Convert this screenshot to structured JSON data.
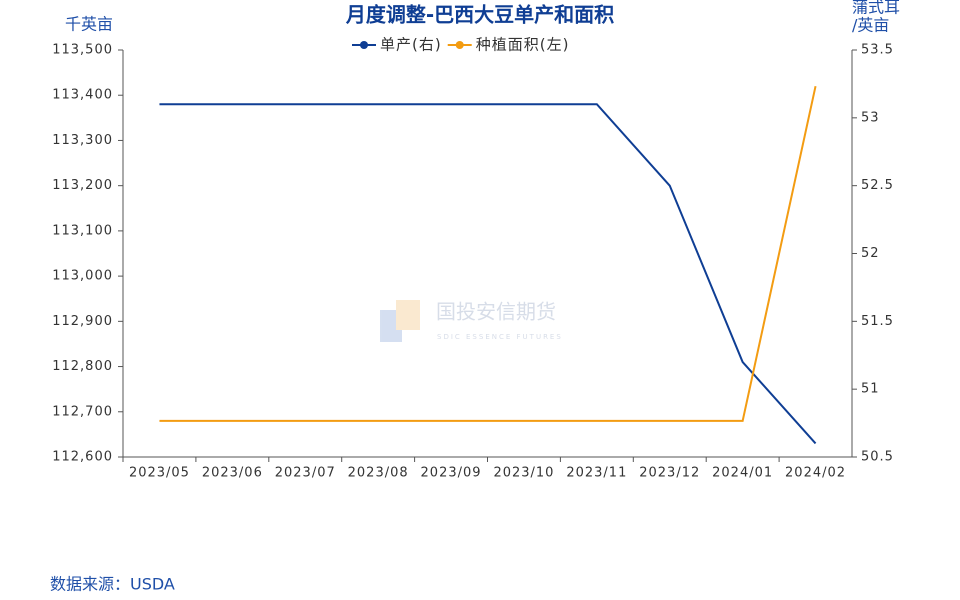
{
  "chart_data": {
    "type": "line",
    "title": "月度调整-巴西大豆单产和面积",
    "y_label": "千英亩",
    "y2_label": [
      "蒲式耳",
      "/英亩"
    ],
    "categories": [
      "2023/05",
      "2023/06",
      "2023/07",
      "2023/08",
      "2023/09",
      "2023/10",
      "2023/11",
      "2023/12",
      "2024/01",
      "2024/02"
    ],
    "series": [
      {
        "name": "单产(右)",
        "color": "#0f3e94",
        "axis": "y2",
        "values": [
          53.1,
          53.1,
          53.1,
          53.1,
          53.1,
          53.1,
          53.1,
          52.5,
          51.2,
          50.6
        ]
      },
      {
        "name": "种植面积(左)",
        "color": "#f39c12",
        "values": [
          112680,
          112680,
          112680,
          112680,
          112680,
          112680,
          112680,
          112680,
          112680,
          113420
        ]
      }
    ],
    "ylim": [
      112600,
      113500
    ],
    "yticks": [
      {
        "value": 112600,
        "label": "112,600"
      },
      {
        "value": 112700,
        "label": "112,700"
      },
      {
        "value": 112800,
        "label": "112,800"
      },
      {
        "value": 112900,
        "label": "112,900"
      },
      {
        "value": 113000,
        "label": "113,000"
      },
      {
        "value": 113100,
        "label": "113,100"
      },
      {
        "value": 113200,
        "label": "113,200"
      },
      {
        "value": 113300,
        "label": "113,300"
      },
      {
        "value": 113400,
        "label": "113,400"
      },
      {
        "value": 113500,
        "label": "113,500"
      }
    ],
    "y2lim": [
      50.5,
      53.5
    ],
    "y2ticks": [
      50.5,
      51,
      51.5,
      52,
      52.5,
      53,
      53.5
    ],
    "legend": "top",
    "watermark": [
      "国投安信期货",
      "SDIC ESSENCE FUTURES"
    ],
    "source": "数据来源：USDA"
  }
}
